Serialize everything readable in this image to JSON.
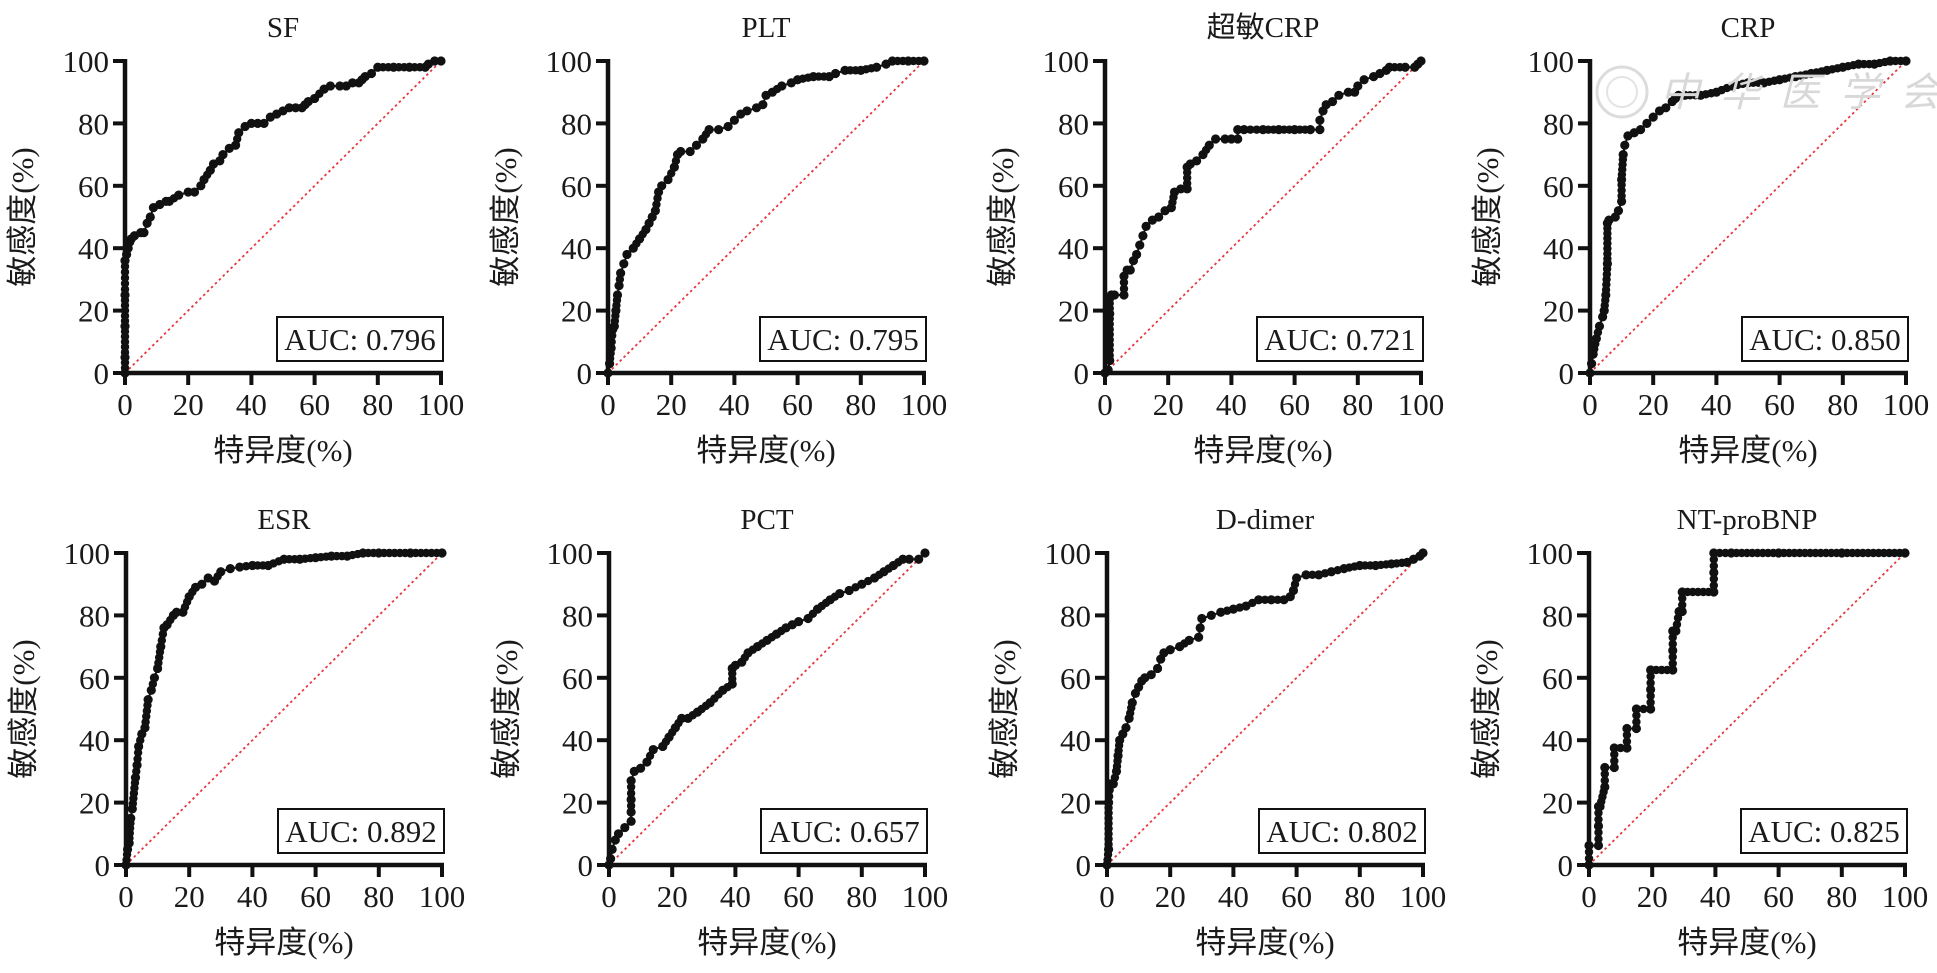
{
  "chart_data": [
    {
      "type": "line",
      "title": "SF",
      "xlabel": "特异度(%)",
      "ylabel": "敏感度(%)",
      "xlim": [
        0,
        100
      ],
      "ylim": [
        0,
        100
      ],
      "xticks": [
        "0",
        "20",
        "40",
        "60",
        "80",
        "100"
      ],
      "yticks": [
        "0",
        "20",
        "40",
        "60",
        "80",
        "100"
      ],
      "grid": false,
      "annotation": "AUC: 0.796",
      "reference_line": {
        "from": [
          0,
          0
        ],
        "to": [
          100,
          100
        ],
        "color": "#e8383d",
        "style": "dotted"
      },
      "series": [
        {
          "name": "SF",
          "color": "#111111",
          "x": [
            0,
            0,
            0,
            0,
            0,
            0.5,
            1,
            1.5,
            2,
            3,
            5,
            6,
            7,
            8,
            9,
            11,
            13,
            14,
            17,
            20,
            22,
            24,
            25,
            27,
            28,
            30,
            31,
            33,
            35,
            36,
            38,
            40,
            42,
            44,
            46,
            48,
            50,
            52,
            54,
            56,
            57,
            58,
            60,
            63,
            65,
            68,
            70,
            72,
            74,
            75,
            76,
            78,
            80,
            85,
            90,
            95,
            96,
            98,
            100
          ],
          "y": [
            0,
            5,
            15,
            25,
            36,
            38,
            40,
            42,
            43,
            44,
            45,
            45,
            48,
            50,
            53,
            54,
            55,
            55,
            57,
            58,
            58,
            60,
            62,
            65,
            67,
            68,
            70,
            72,
            73,
            77,
            79,
            80,
            80,
            80,
            82,
            83,
            84,
            85,
            85,
            85,
            86,
            87,
            88,
            91,
            92,
            92,
            92,
            93,
            93,
            94,
            95,
            96,
            98,
            98,
            98,
            98,
            99,
            100,
            100
          ]
        }
      ]
    },
    {
      "type": "line",
      "title": "PLT",
      "xlabel": "特异度(%)",
      "ylabel": "敏感度(%)",
      "xlim": [
        0,
        100
      ],
      "ylim": [
        0,
        100
      ],
      "xticks": [
        "0",
        "20",
        "40",
        "60",
        "80",
        "100"
      ],
      "yticks": [
        "0",
        "20",
        "40",
        "60",
        "80",
        "100"
      ],
      "grid": false,
      "annotation": "AUC: 0.795",
      "reference_line": {
        "from": [
          0,
          0
        ],
        "to": [
          100,
          100
        ],
        "color": "#e8383d",
        "style": "dotted"
      },
      "series": [
        {
          "name": "PLT",
          "color": "#111111",
          "x": [
            0,
            0.5,
            1,
            1.5,
            2,
            2.5,
            3,
            3.5,
            4,
            5,
            6,
            8,
            10,
            12,
            13,
            14,
            15,
            16,
            17,
            19,
            21,
            22,
            23,
            26,
            28,
            30,
            32,
            35,
            38,
            40,
            42,
            44,
            47,
            49,
            50,
            52,
            55,
            58,
            60,
            65,
            70,
            72,
            75,
            80,
            85,
            88,
            90,
            95,
            100
          ],
          "y": [
            0,
            3,
            8,
            14,
            15,
            20,
            25,
            28,
            32,
            35,
            38,
            40,
            43,
            46,
            48,
            50,
            52,
            58,
            60,
            62,
            66,
            70,
            71,
            71,
            73,
            75,
            78,
            78,
            79,
            81,
            83,
            84,
            85,
            86,
            89,
            90,
            92,
            93,
            94,
            95,
            95,
            96,
            97,
            97,
            98,
            99,
            100,
            100,
            100
          ]
        }
      ]
    },
    {
      "type": "line",
      "title": "超敏CRP",
      "xlabel": "特异度(%)",
      "ylabel": "敏感度(%)",
      "xlim": [
        0,
        100
      ],
      "ylim": [
        0,
        100
      ],
      "xticks": [
        "0",
        "20",
        "40",
        "60",
        "80",
        "100"
      ],
      "yticks": [
        "0",
        "20",
        "40",
        "60",
        "80",
        "100"
      ],
      "grid": false,
      "annotation": "AUC: 0.721",
      "reference_line": {
        "from": [
          0,
          0
        ],
        "to": [
          100,
          100
        ],
        "color": "#e8383d",
        "style": "dotted"
      },
      "series": [
        {
          "name": "超敏CRP",
          "color": "#111111",
          "x": [
            0,
            1,
            1.5,
            1.5,
            1.5,
            2,
            3,
            6,
            6,
            7,
            8,
            9,
            10,
            11,
            12,
            13,
            15,
            17,
            19,
            21,
            22,
            24,
            26,
            26,
            27,
            29,
            31,
            33,
            35,
            38,
            40,
            42,
            42,
            44,
            50,
            55,
            60,
            65,
            68,
            68,
            69,
            70,
            72,
            74,
            77,
            79,
            80,
            82,
            85,
            87,
            89,
            90,
            95,
            98,
            99,
            100
          ],
          "y": [
            0,
            1,
            4,
            19,
            24,
            25,
            25,
            25,
            31,
            33,
            33,
            36,
            38,
            41,
            44,
            47,
            49,
            50,
            52,
            53,
            58,
            59,
            59,
            66,
            67,
            68,
            70,
            73,
            75,
            75,
            75,
            75,
            78,
            78,
            78,
            78,
            78,
            78,
            78,
            81,
            84,
            86,
            87,
            89,
            90,
            90,
            92,
            94,
            95,
            96,
            97,
            98,
            98,
            98,
            99,
            100
          ]
        }
      ]
    },
    {
      "type": "line",
      "title": "CRP",
      "xlabel": "特异度(%)",
      "ylabel": "敏感度(%)",
      "xlim": [
        0,
        100
      ],
      "ylim": [
        0,
        100
      ],
      "xticks": [
        "0",
        "20",
        "40",
        "60",
        "80",
        "100"
      ],
      "yticks": [
        "0",
        "20",
        "40",
        "60",
        "80",
        "100"
      ],
      "grid": false,
      "annotation": "AUC: 0.850",
      "reference_line": {
        "from": [
          0,
          0
        ],
        "to": [
          100,
          100
        ],
        "color": "#e8383d",
        "style": "dotted"
      },
      "series": [
        {
          "name": "CRP",
          "color": "#111111",
          "x": [
            0,
            0.5,
            1,
            2,
            3,
            4,
            4.5,
            5,
            5.5,
            5.5,
            6,
            8,
            9,
            10,
            10,
            10.5,
            11,
            12,
            14,
            16,
            18,
            20,
            22,
            24,
            26,
            27,
            28,
            30,
            35,
            40,
            45,
            50,
            55,
            60,
            65,
            70,
            75,
            80,
            85,
            90,
            95,
            100
          ],
          "y": [
            0,
            3,
            6,
            11,
            15,
            18,
            20,
            25,
            35,
            48,
            49,
            50,
            52,
            55,
            62,
            70,
            73,
            76,
            77,
            78,
            80,
            82,
            84,
            85,
            87,
            88,
            89,
            89,
            89,
            90,
            92,
            93,
            93,
            94,
            95,
            96,
            97,
            98,
            99,
            99,
            100,
            100
          ]
        }
      ]
    },
    {
      "type": "line",
      "title": "ESR",
      "xlabel": "特异度(%)",
      "ylabel": "敏感度(%)",
      "xlim": [
        0,
        100
      ],
      "ylim": [
        0,
        100
      ],
      "xticks": [
        "0",
        "20",
        "40",
        "60",
        "80",
        "100"
      ],
      "yticks": [
        "0",
        "20",
        "40",
        "60",
        "80",
        "100"
      ],
      "grid": false,
      "annotation": "AUC: 0.892",
      "reference_line": {
        "from": [
          0,
          0
        ],
        "to": [
          100,
          100
        ],
        "color": "#e8383d",
        "style": "dotted"
      },
      "series": [
        {
          "name": "ESR",
          "color": "#111111",
          "x": [
            0,
            0.5,
            1,
            1.5,
            2,
            3,
            3.5,
            4,
            5,
            6,
            7,
            8,
            9,
            10,
            11,
            12,
            13,
            15,
            16,
            18,
            20,
            22,
            24,
            26,
            28,
            30,
            33,
            36,
            40,
            45,
            50,
            55,
            60,
            65,
            70,
            75,
            80,
            90,
            100
          ],
          "y": [
            0,
            5,
            7,
            15,
            18,
            28,
            32,
            38,
            42,
            44,
            53,
            56,
            60,
            63,
            70,
            76,
            77,
            80,
            81,
            81,
            86,
            89,
            90,
            92,
            91,
            94,
            95,
            95.5,
            96,
            96,
            98,
            98,
            98.5,
            99,
            99,
            100,
            100,
            100,
            100
          ]
        }
      ]
    },
    {
      "type": "line",
      "title": "PCT",
      "xlabel": "特异度(%)",
      "ylabel": "敏感度(%)",
      "xlim": [
        0,
        100
      ],
      "ylim": [
        0,
        100
      ],
      "xticks": [
        "0",
        "20",
        "40",
        "60",
        "80",
        "100"
      ],
      "yticks": [
        "0",
        "20",
        "40",
        "60",
        "80",
        "100"
      ],
      "grid": false,
      "annotation": "AUC: 0.657",
      "reference_line": {
        "from": [
          0,
          0
        ],
        "to": [
          100,
          100
        ],
        "color": "#e8383d",
        "style": "dotted"
      },
      "series": [
        {
          "name": "PCT",
          "color": "#111111",
          "x": [
            0,
            0.5,
            1,
            2,
            3,
            5,
            7,
            7,
            7,
            7,
            8,
            10,
            12,
            14,
            17,
            19,
            21,
            23,
            25,
            28,
            32,
            36,
            39,
            39,
            40,
            42,
            44,
            47,
            50,
            53,
            56,
            58,
            60,
            63,
            66,
            70,
            73,
            76,
            80,
            84,
            87,
            90,
            93,
            95,
            98,
            100
          ],
          "y": [
            0,
            2,
            5,
            8,
            10,
            12,
            14,
            17,
            21,
            27,
            30,
            31,
            33,
            37,
            38,
            41,
            44,
            47,
            47,
            49,
            52,
            56,
            58,
            63,
            64,
            65,
            68,
            70,
            72,
            74,
            76,
            77,
            78,
            79,
            82,
            85,
            87,
            88,
            90,
            92,
            94,
            96,
            98,
            98,
            98,
            100
          ]
        }
      ]
    },
    {
      "type": "line",
      "title": "D-dimer",
      "xlabel": "特异度(%)",
      "ylabel": "敏感度(%)",
      "xlim": [
        0,
        100
      ],
      "ylim": [
        0,
        100
      ],
      "xticks": [
        "0",
        "20",
        "40",
        "60",
        "80",
        "100"
      ],
      "yticks": [
        "0",
        "20",
        "40",
        "60",
        "80",
        "100"
      ],
      "grid": false,
      "annotation": "AUC: 0.802",
      "reference_line": {
        "from": [
          0,
          0
        ],
        "to": [
          100,
          100
        ],
        "color": "#e8383d",
        "style": "dotted"
      },
      "series": [
        {
          "name": "D-dimer",
          "color": "#111111",
          "x": [
            0,
            0.5,
            0.5,
            1,
            2,
            3,
            3.5,
            4,
            5,
            6,
            7,
            8,
            9,
            10,
            11,
            12,
            14,
            16,
            17,
            18,
            20,
            23,
            26,
            29,
            29.5,
            30,
            33,
            36,
            40,
            44,
            48,
            52,
            56,
            58,
            59,
            60,
            63,
            67,
            71,
            75,
            80,
            85,
            90,
            95,
            97,
            99,
            100
          ],
          "y": [
            0,
            5,
            20,
            26,
            26,
            30,
            35,
            40,
            42,
            44,
            47,
            52,
            55,
            57,
            59,
            60,
            61,
            63,
            66,
            68,
            69,
            70,
            72,
            73,
            76,
            79,
            80,
            81,
            82,
            83,
            85,
            85,
            85,
            86,
            88,
            92,
            93,
            93,
            94,
            95,
            96,
            96,
            96.5,
            97,
            98,
            99,
            100
          ]
        }
      ]
    },
    {
      "type": "line",
      "title": "NT-proBNP",
      "xlabel": "特异度(%)",
      "ylabel": "敏感度(%)",
      "xlim": [
        0,
        100
      ],
      "ylim": [
        0,
        100
      ],
      "xticks": [
        "0",
        "20",
        "40",
        "60",
        "80",
        "100"
      ],
      "yticks": [
        "0",
        "20",
        "40",
        "60",
        "80",
        "100"
      ],
      "grid": false,
      "annotation": "AUC: 0.825",
      "reference_line": {
        "from": [
          0,
          0
        ],
        "to": [
          100,
          100
        ],
        "color": "#e8383d",
        "style": "dotted"
      },
      "series": [
        {
          "name": "NT-proBNP",
          "color": "#111111",
          "x": [
            0,
            0,
            3,
            3,
            3,
            3.5,
            5,
            5,
            8,
            8,
            12,
            12,
            15,
            15,
            19.5,
            19.5,
            19.5,
            26.5,
            26.5,
            26.5,
            27.5,
            28.5,
            29.5,
            29.5,
            39.5,
            39.5,
            39.5,
            45,
            60,
            80,
            100
          ],
          "y": [
            0,
            6.25,
            6.25,
            12.5,
            18.75,
            18.75,
            25,
            31.25,
            31.25,
            37.5,
            37.5,
            43.75,
            43.75,
            50,
            50,
            56.25,
            62.5,
            62.5,
            68.75,
            75,
            75,
            81.25,
            81.25,
            87.5,
            87.5,
            93.75,
            100,
            100,
            100,
            100,
            100
          ]
        }
      ]
    }
  ],
  "watermark": "中华医学会"
}
